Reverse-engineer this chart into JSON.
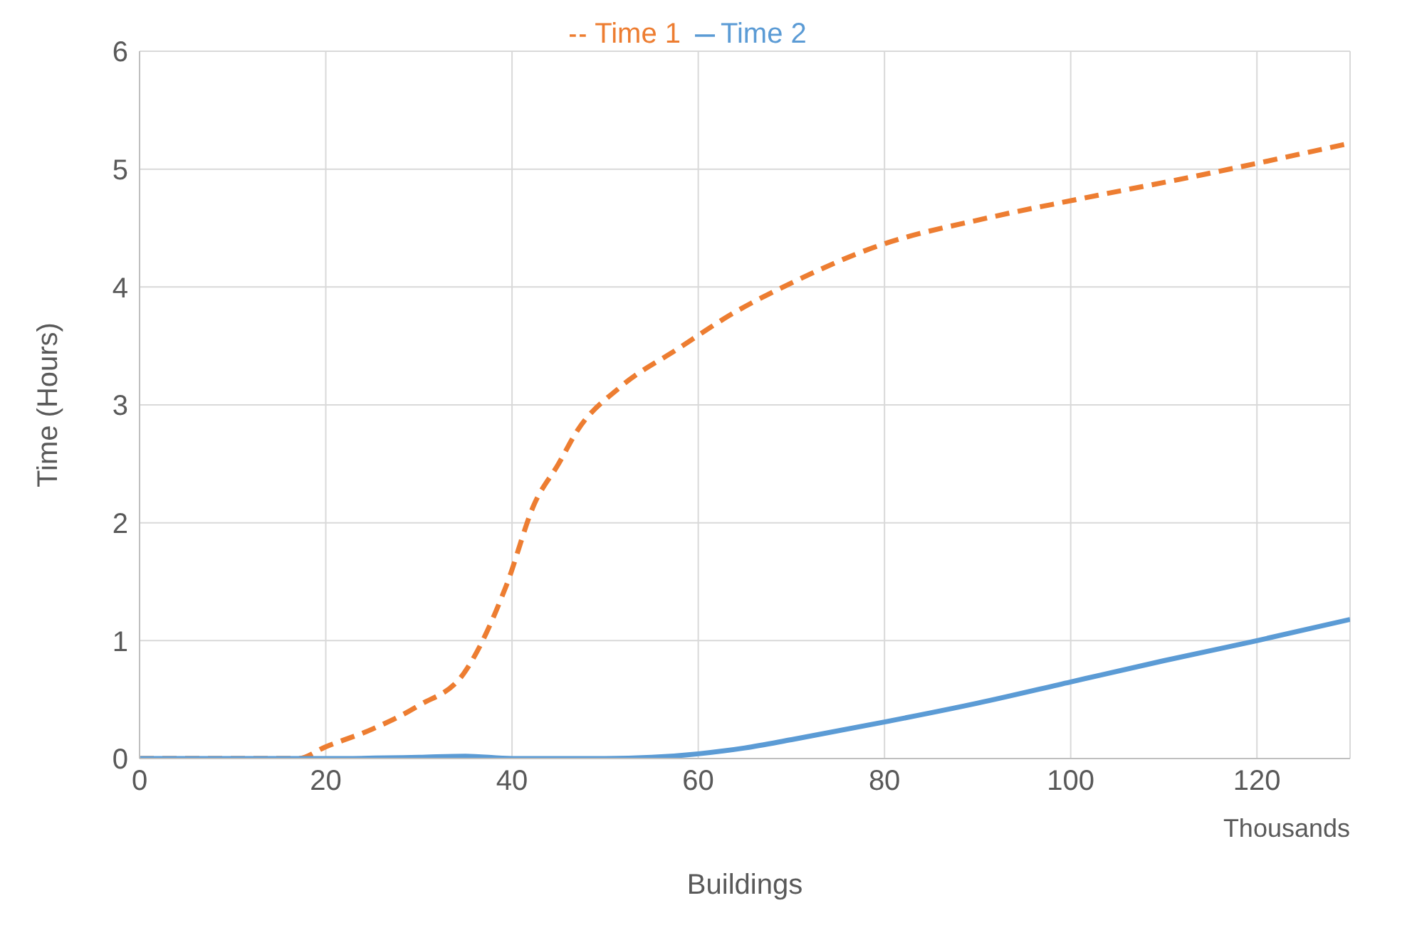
{
  "chart_data": {
    "type": "line",
    "xlabel": "Buildings",
    "ylabel": "Time (Hours)",
    "annotations": [
      "Thousands"
    ],
    "xlim": [
      0,
      130
    ],
    "xticks": [
      0,
      20,
      40,
      60,
      80,
      100,
      120
    ],
    "ylim": [
      0,
      6
    ],
    "yticks": [
      0,
      1,
      2,
      3,
      4,
      5,
      6
    ],
    "grid": true,
    "legend": "top",
    "series": [
      {
        "name": "Time 1",
        "color": "#ed7d31",
        "line_style": "dashed",
        "x": [
          0,
          10,
          17,
          20,
          25,
          30,
          34.8,
          39.4,
          42.4,
          45,
          47,
          51.6,
          57.7,
          63.8,
          69.9,
          79,
          91.3,
          100.5,
          114,
          130
        ],
        "values": [
          0,
          0,
          0,
          0.1,
          0.25,
          0.45,
          0.72,
          1.47,
          2.16,
          2.5,
          2.78,
          3.15,
          3.47,
          3.78,
          4.03,
          4.34,
          4.59,
          4.74,
          4.95,
          5.22
        ]
      },
      {
        "name": "Time 2",
        "color": "#5b9bd5",
        "line_style": "solid",
        "x": [
          0,
          10,
          20,
          30,
          35,
          40,
          50,
          55,
          60,
          65,
          70,
          80,
          90,
          100,
          110,
          120,
          130
        ],
        "values": [
          0,
          0,
          0,
          0.01,
          0.02,
          0,
          0,
          0.01,
          0.04,
          0.09,
          0.16,
          0.31,
          0.47,
          0.65,
          0.83,
          1.0,
          1.18
        ]
      }
    ]
  }
}
